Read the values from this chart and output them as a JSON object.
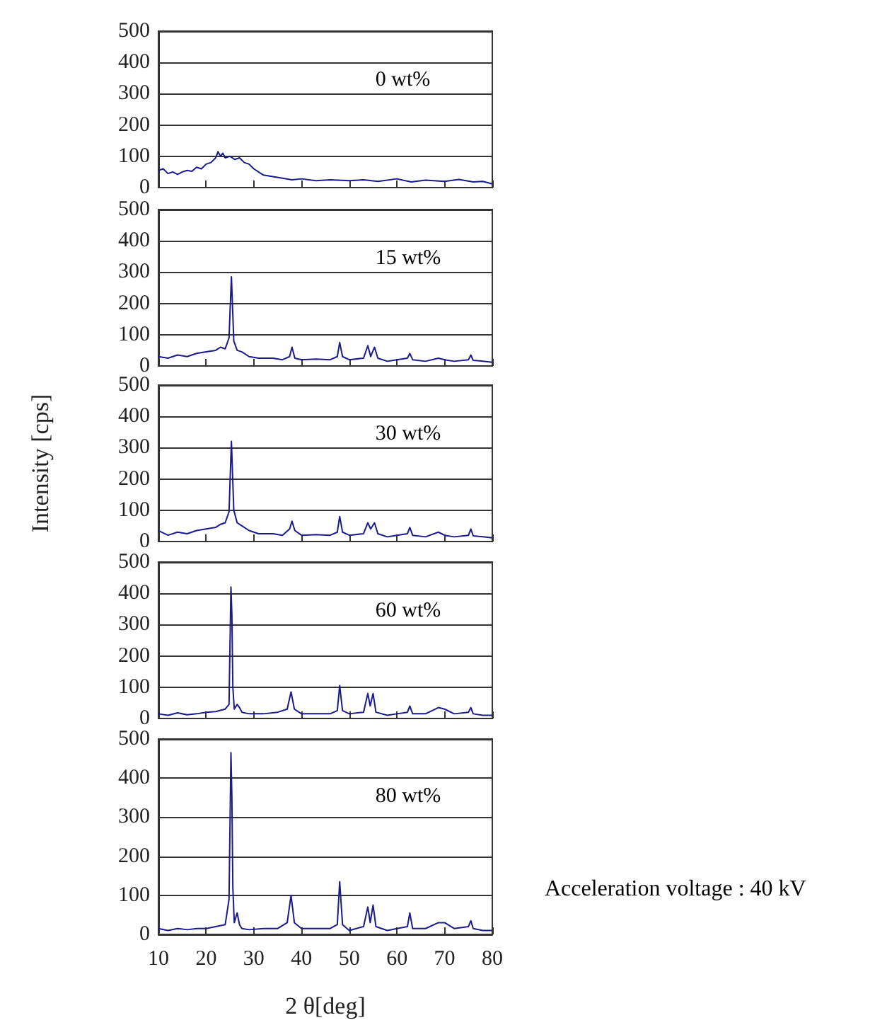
{
  "chart_data": [
    {
      "type": "line",
      "color": "#1a1a8c",
      "xlim": [
        10,
        80
      ],
      "xticks": [
        10,
        20,
        30,
        40,
        50,
        60,
        70,
        80
      ],
      "ylim": [
        0,
        500
      ],
      "yticks": [
        0,
        100,
        200,
        300,
        400,
        500
      ],
      "grid": "y",
      "tick_labels": "y",
      "annotations": [
        "0 wt%"
      ],
      "x": [
        10,
        11,
        12,
        13,
        14,
        15,
        16,
        17,
        18,
        19,
        20,
        21,
        22,
        22.5,
        23,
        23.5,
        24,
        25,
        26,
        27,
        28,
        29,
        30,
        32,
        34,
        36,
        38,
        40,
        43,
        46,
        50,
        53,
        56,
        60,
        63,
        66,
        70,
        73,
        76,
        78,
        80
      ],
      "values": [
        55,
        60,
        45,
        50,
        42,
        50,
        55,
        52,
        65,
        60,
        75,
        80,
        95,
        115,
        100,
        110,
        95,
        100,
        90,
        95,
        80,
        75,
        60,
        40,
        35,
        30,
        25,
        28,
        22,
        25,
        22,
        25,
        20,
        28,
        18,
        24,
        20,
        26,
        18,
        20,
        12
      ]
    },
    {
      "type": "line",
      "color": "#1a1a8c",
      "xlim": [
        10,
        80
      ],
      "xticks": [
        10,
        20,
        30,
        40,
        50,
        60,
        70,
        80
      ],
      "ylim": [
        0,
        500
      ],
      "yticks": [
        0,
        100,
        200,
        300,
        400,
        500
      ],
      "grid": "y",
      "tick_labels": "y",
      "annotations": [
        "15 wt%"
      ],
      "x": [
        10,
        12,
        14,
        16,
        18,
        20,
        22,
        23,
        24,
        24.8,
        25.3,
        25.8,
        26.5,
        27.5,
        29,
        31,
        34,
        36,
        37.5,
        38,
        38.6,
        40,
        43,
        46,
        47.5,
        48,
        48.6,
        50,
        53,
        53.9,
        54.5,
        55.3,
        56,
        58,
        60,
        62.2,
        62.7,
        63.3,
        66,
        68.7,
        70,
        72,
        75,
        75.5,
        76,
        78,
        80
      ],
      "values": [
        30,
        25,
        35,
        30,
        40,
        45,
        50,
        60,
        55,
        90,
        285,
        80,
        50,
        45,
        30,
        25,
        25,
        20,
        30,
        60,
        25,
        20,
        22,
        20,
        30,
        75,
        30,
        20,
        25,
        65,
        30,
        60,
        25,
        15,
        20,
        25,
        40,
        20,
        15,
        25,
        20,
        15,
        20,
        35,
        18,
        15,
        12
      ]
    },
    {
      "type": "line",
      "color": "#1a1a8c",
      "xlim": [
        10,
        80
      ],
      "xticks": [
        10,
        20,
        30,
        40,
        50,
        60,
        70,
        80
      ],
      "ylim": [
        0,
        500
      ],
      "yticks": [
        0,
        100,
        200,
        300,
        400,
        500
      ],
      "grid": "y",
      "tick_labels": "y",
      "ylabel": "Intensity [cps]",
      "annotations": [
        "30 wt%"
      ],
      "x": [
        10,
        12,
        14,
        16,
        18,
        20,
        22,
        23,
        24,
        24.8,
        25.3,
        25.8,
        26.5,
        27.5,
        29,
        31,
        34,
        36,
        37.5,
        38,
        38.6,
        40,
        43,
        46,
        47.5,
        48,
        48.6,
        50,
        53,
        53.9,
        54.5,
        55.3,
        56,
        58,
        60,
        62.2,
        62.7,
        63.3,
        66,
        68.7,
        70,
        72,
        75,
        75.5,
        76,
        78,
        80
      ],
      "values": [
        35,
        20,
        30,
        25,
        35,
        40,
        45,
        55,
        60,
        95,
        320,
        100,
        60,
        50,
        35,
        25,
        25,
        20,
        40,
        65,
        35,
        20,
        22,
        20,
        30,
        80,
        30,
        20,
        25,
        60,
        40,
        60,
        25,
        15,
        20,
        25,
        45,
        20,
        15,
        30,
        20,
        15,
        20,
        40,
        18,
        15,
        12
      ]
    },
    {
      "type": "line",
      "color": "#1a1a8c",
      "xlim": [
        10,
        80
      ],
      "xticks": [
        10,
        20,
        30,
        40,
        50,
        60,
        70,
        80
      ],
      "ylim": [
        0,
        500
      ],
      "yticks": [
        0,
        100,
        200,
        300,
        400,
        500
      ],
      "grid": "y",
      "tick_labels": "y",
      "annotations": [
        "60 wt%"
      ],
      "x": [
        10,
        12,
        14,
        16,
        18,
        20,
        22,
        24,
        24.8,
        25.2,
        25.4,
        25.6,
        25.9,
        26.5,
        27,
        27.5,
        29,
        32,
        35,
        37,
        37.8,
        38.5,
        40,
        43,
        46,
        47.5,
        48,
        48.6,
        50,
        53,
        53.9,
        54.4,
        55,
        55.6,
        58,
        60,
        62.2,
        62.7,
        63.3,
        66,
        68.7,
        70,
        72,
        75,
        75.5,
        76,
        78,
        80
      ],
      "values": [
        15,
        10,
        18,
        12,
        15,
        20,
        22,
        30,
        45,
        420,
        330,
        100,
        30,
        45,
        35,
        20,
        15,
        15,
        20,
        30,
        85,
        30,
        15,
        15,
        15,
        25,
        105,
        25,
        15,
        20,
        80,
        40,
        80,
        20,
        10,
        15,
        20,
        40,
        15,
        15,
        35,
        30,
        15,
        20,
        35,
        15,
        10,
        10
      ]
    },
    {
      "type": "line",
      "color": "#1a1a8c",
      "xlim": [
        10,
        80
      ],
      "xticks": [
        10,
        20,
        30,
        40,
        50,
        60,
        70,
        80
      ],
      "ylim": [
        0,
        500
      ],
      "yticks": [
        0,
        100,
        200,
        300,
        400,
        500
      ],
      "grid": "y",
      "xlabel": "2 θ[deg]",
      "annotations": [
        "80 wt%",
        "Acceleration voltage : 40 kV"
      ],
      "x": [
        10,
        12,
        14,
        16,
        18,
        20,
        22,
        24,
        24.8,
        25.2,
        25.4,
        25.6,
        25.9,
        26.5,
        27,
        27.5,
        29,
        32,
        35,
        37,
        37.8,
        38.5,
        40,
        43,
        46,
        47.5,
        48,
        48.6,
        50,
        53,
        53.9,
        54.4,
        55,
        55.6,
        58,
        60,
        62.2,
        62.7,
        63.3,
        66,
        68.7,
        70,
        72,
        75,
        75.5,
        76,
        78,
        80
      ],
      "values": [
        15,
        10,
        15,
        12,
        15,
        15,
        20,
        25,
        90,
        465,
        350,
        120,
        30,
        55,
        25,
        15,
        12,
        15,
        15,
        30,
        100,
        30,
        15,
        15,
        15,
        25,
        135,
        25,
        10,
        20,
        70,
        30,
        75,
        20,
        10,
        15,
        20,
        55,
        15,
        15,
        30,
        30,
        15,
        20,
        35,
        15,
        10,
        10
      ]
    }
  ]
}
